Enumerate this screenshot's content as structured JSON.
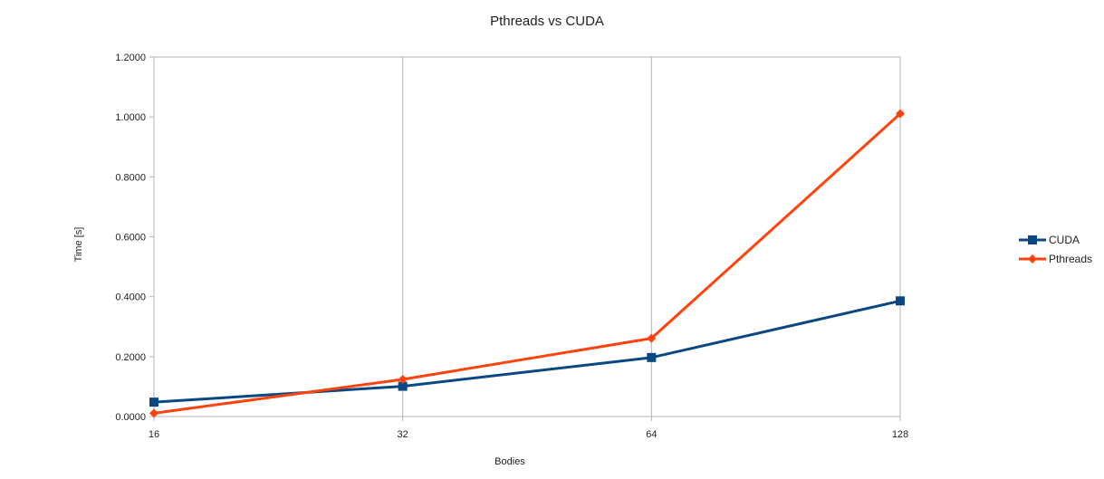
{
  "chart_data": {
    "type": "line",
    "title": "Pthreads vs CUDA",
    "xlabel": "Bodies",
    "ylabel": "Time [s]",
    "categories": [
      "16",
      "32",
      "64",
      "128"
    ],
    "ylim": [
      0,
      1.2
    ],
    "yticks": [
      "0.0000",
      "0.2000",
      "0.4000",
      "0.6000",
      "0.8000",
      "1.0000",
      "1.2000"
    ],
    "grid": "vertical",
    "legend_position": "right",
    "series": [
      {
        "name": "CUDA",
        "marker": "square",
        "color": "#0a4783",
        "values": [
          0.048,
          0.101,
          0.197,
          0.386
        ]
      },
      {
        "name": "Pthreads",
        "marker": "diamond",
        "color": "#ff420e",
        "values": [
          0.011,
          0.124,
          0.261,
          1.011
        ]
      }
    ]
  }
}
